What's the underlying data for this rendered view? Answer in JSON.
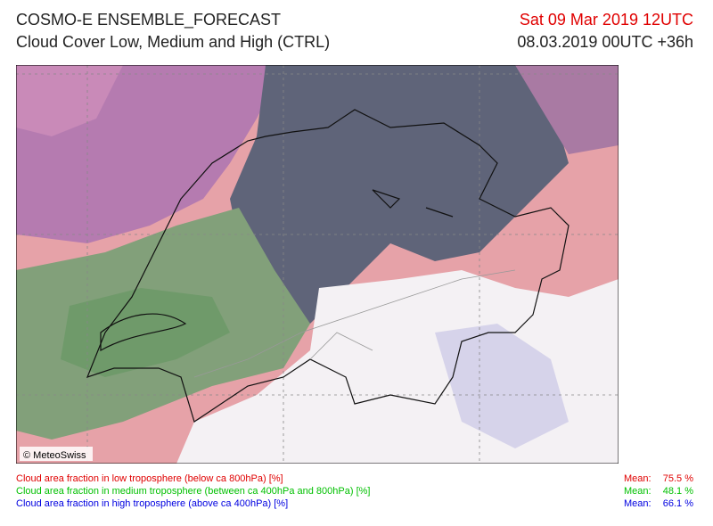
{
  "header": {
    "title": "COSMO-E ENSEMBLE_FORECAST",
    "subtitle": "Cloud Cover Low, Medium and High (CTRL)",
    "valid_time": "Sat 09 Mar 2019 12UTC",
    "run_time": "08.03.2019 00UTC +36h"
  },
  "map": {
    "copyright": "© MeteoSwiss"
  },
  "legend": [
    {
      "label": "Cloud area fraction in low troposphere (below ca 800hPa) [%]",
      "mean_label": "Mean:",
      "mean": "75.5 %",
      "color": "#e00000"
    },
    {
      "label": "Cloud area fraction in medium troposphere (between ca 400hPa and 800hPa) [%]",
      "mean_label": "Mean:",
      "mean": "48.1 %",
      "color": "#00c000"
    },
    {
      "label": "Cloud area fraction in high troposphere (above ca 400hPa) [%]",
      "mean_label": "Mean:",
      "mean": "66.1 %",
      "color": "#0000e0"
    }
  ]
}
